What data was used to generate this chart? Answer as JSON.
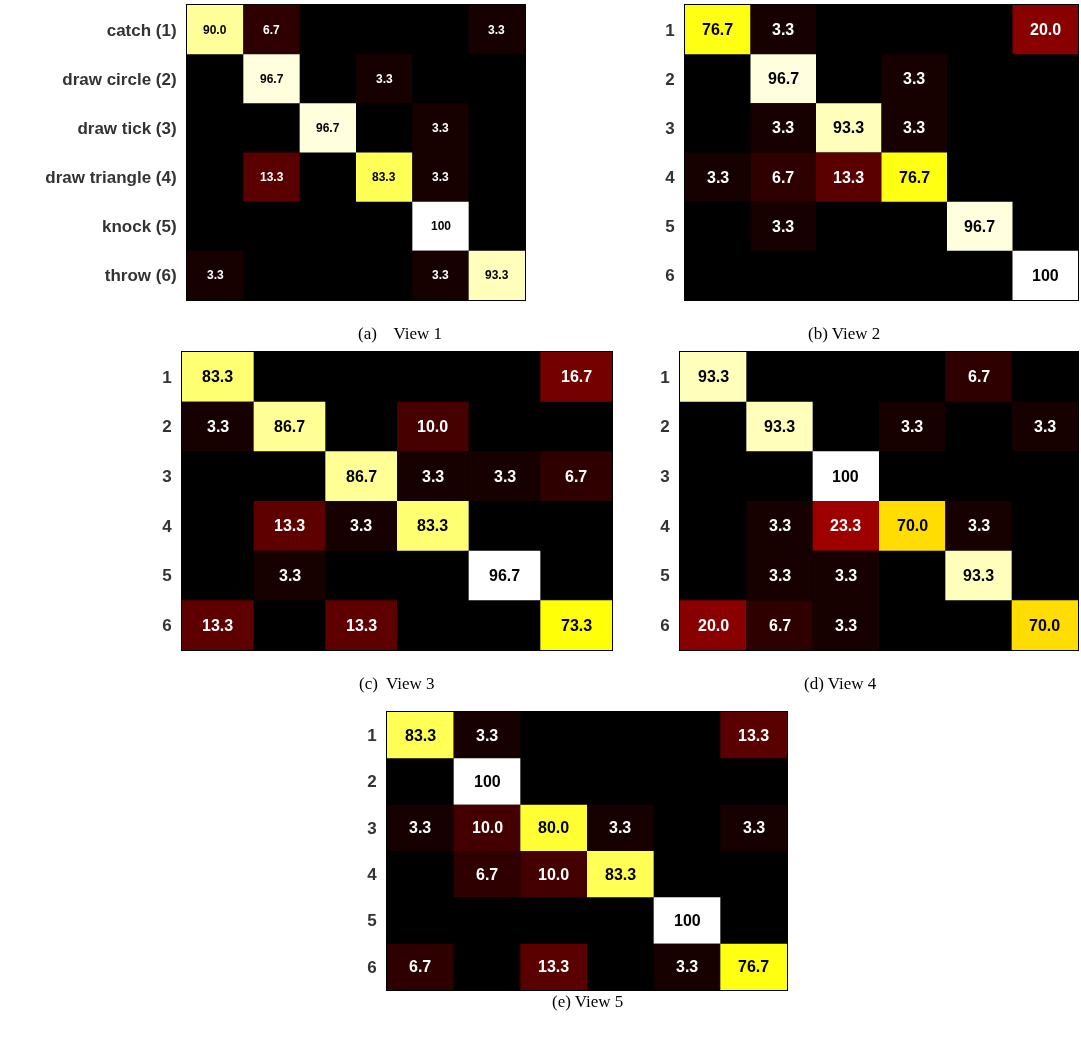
{
  "chart_data": [
    {
      "type": "heatmap",
      "title": "(a)    View 1",
      "categories": [
        null,
        null,
        null,
        null,
        null,
        null
      ],
      "y_categories": [
        "catch (1)",
        "draw circle (2)",
        "draw tick (3)",
        "draw triangle (4)",
        "knock (5)",
        "throw (6)"
      ],
      "cells": [
        [
          90.0,
          6.7,
          null,
          null,
          null,
          3.3
        ],
        [
          null,
          96.7,
          null,
          3.3,
          null,
          null
        ],
        [
          null,
          null,
          96.7,
          null,
          3.3,
          null
        ],
        [
          null,
          13.3,
          null,
          83.3,
          3.3,
          null
        ],
        [
          null,
          null,
          null,
          null,
          100,
          null
        ],
        [
          3.3,
          null,
          null,
          null,
          3.3,
          93.3
        ]
      ],
      "cell_labels": [
        [
          "90.0",
          "6.7",
          null,
          null,
          null,
          "3.3"
        ],
        [
          null,
          "96.7",
          null,
          "3.3",
          null,
          null
        ],
        [
          null,
          null,
          "96.7",
          null,
          "3.3",
          null
        ],
        [
          null,
          "13.3",
          null,
          "83.3",
          "3.3",
          null
        ],
        [
          null,
          null,
          null,
          null,
          "100",
          null
        ],
        [
          "3.3",
          null,
          null,
          null,
          "3.3",
          "93.3"
        ]
      ],
      "tick_labels": "y",
      "grid": false
    },
    {
      "type": "heatmap",
      "title": "(b) View 2",
      "categories": [
        null,
        null,
        null,
        null,
        null,
        null
      ],
      "y_categories": [
        "1",
        "2",
        "3",
        "4",
        "5",
        "6"
      ],
      "cells": [
        [
          76.7,
          3.3,
          null,
          null,
          null,
          20.0
        ],
        [
          null,
          96.7,
          null,
          3.3,
          null,
          null
        ],
        [
          null,
          3.3,
          93.3,
          3.3,
          null,
          null
        ],
        [
          3.3,
          6.7,
          13.3,
          76.7,
          null,
          null
        ],
        [
          null,
          3.3,
          null,
          null,
          96.7,
          null
        ],
        [
          null,
          null,
          null,
          null,
          null,
          100
        ]
      ],
      "cell_labels": [
        [
          "76.7",
          "3.3",
          null,
          null,
          null,
          "20.0"
        ],
        [
          null,
          "96.7",
          null,
          "3.3",
          null,
          null
        ],
        [
          null,
          "3.3",
          "93.3",
          "3.3",
          null,
          null
        ],
        [
          "3.3",
          "6.7",
          "13.3",
          "76.7",
          null,
          null
        ],
        [
          null,
          "3.3",
          null,
          null,
          "96.7",
          null
        ],
        [
          null,
          null,
          null,
          null,
          null,
          "100"
        ]
      ],
      "tick_labels": "y",
      "grid": false
    },
    {
      "type": "heatmap",
      "title": "(c)  View 3",
      "categories": [
        null,
        null,
        null,
        null,
        null,
        null
      ],
      "y_categories": [
        "1",
        "2",
        "3",
        "4",
        "5",
        "6"
      ],
      "cells": [
        [
          83.3,
          null,
          null,
          null,
          null,
          16.7
        ],
        [
          3.3,
          86.7,
          null,
          10.0,
          null,
          null
        ],
        [
          null,
          null,
          86.7,
          3.3,
          3.3,
          6.7
        ],
        [
          null,
          13.3,
          3.3,
          83.3,
          null,
          null
        ],
        [
          null,
          3.3,
          null,
          null,
          96.7,
          null
        ],
        [
          13.3,
          null,
          13.3,
          null,
          null,
          73.3
        ]
      ],
      "cell_labels": [
        [
          "83.3",
          null,
          null,
          null,
          null,
          "16.7"
        ],
        [
          "3.3",
          "86.7",
          null,
          "10.0",
          null,
          null
        ],
        [
          null,
          null,
          "86.7",
          "3.3",
          "3.3",
          "6.7"
        ],
        [
          null,
          "13.3",
          "3.3",
          "83.3",
          null,
          null
        ],
        [
          null,
          "3.3",
          null,
          null,
          "96.7",
          null
        ],
        [
          "13.3",
          null,
          "13.3",
          null,
          null,
          "73.3"
        ]
      ],
      "tick_labels": "y",
      "grid": false
    },
    {
      "type": "heatmap",
      "title": "(d) View 4",
      "categories": [
        null,
        null,
        null,
        null,
        null,
        null
      ],
      "y_categories": [
        "1",
        "2",
        "3",
        "4",
        "5",
        "6"
      ],
      "cells": [
        [
          93.3,
          null,
          null,
          null,
          6.7,
          null
        ],
        [
          null,
          93.3,
          null,
          3.3,
          null,
          3.3
        ],
        [
          null,
          null,
          100,
          null,
          null,
          null
        ],
        [
          null,
          3.3,
          23.3,
          70.0,
          3.3,
          null
        ],
        [
          null,
          3.3,
          3.3,
          null,
          93.3,
          null
        ],
        [
          20.0,
          6.7,
          3.3,
          null,
          null,
          70.0
        ]
      ],
      "cell_labels": [
        [
          "93.3",
          null,
          null,
          null,
          "6.7",
          null
        ],
        [
          null,
          "93.3",
          null,
          "3.3",
          null,
          "3.3"
        ],
        [
          null,
          null,
          "100",
          null,
          null,
          null
        ],
        [
          null,
          "3.3",
          "23.3",
          "70.0",
          "3.3",
          null
        ],
        [
          null,
          "3.3",
          "3.3",
          null,
          "93.3",
          null
        ],
        [
          "20.0",
          "6.7",
          "3.3",
          null,
          null,
          "70.0"
        ]
      ],
      "tick_labels": "y",
      "grid": false
    },
    {
      "type": "heatmap",
      "title": "(e) View 5",
      "categories": [
        null,
        null,
        null,
        null,
        null,
        null
      ],
      "y_categories": [
        "1",
        "2",
        "3",
        "4",
        "5",
        "6"
      ],
      "cells": [
        [
          83.3,
          3.3,
          null,
          null,
          null,
          13.3
        ],
        [
          null,
          100,
          null,
          null,
          null,
          null
        ],
        [
          3.3,
          10.0,
          80.0,
          3.3,
          null,
          3.3
        ],
        [
          null,
          6.7,
          10.0,
          83.3,
          null,
          null
        ],
        [
          null,
          null,
          null,
          null,
          100,
          null
        ],
        [
          6.7,
          null,
          13.3,
          null,
          3.3,
          76.7
        ]
      ],
      "cell_labels": [
        [
          "83.3",
          "3.3",
          null,
          null,
          null,
          "13.3"
        ],
        [
          null,
          "100",
          null,
          null,
          null,
          null
        ],
        [
          "3.3",
          "10.0",
          "80.0",
          "3.3",
          null,
          "3.3"
        ],
        [
          null,
          "6.7",
          "10.0",
          "83.3",
          null,
          null
        ],
        [
          null,
          null,
          null,
          null,
          "100",
          null
        ],
        [
          "6.7",
          null,
          "13.3",
          null,
          "3.3",
          "76.7"
        ]
      ],
      "tick_labels": "y",
      "grid": false
    }
  ]
}
